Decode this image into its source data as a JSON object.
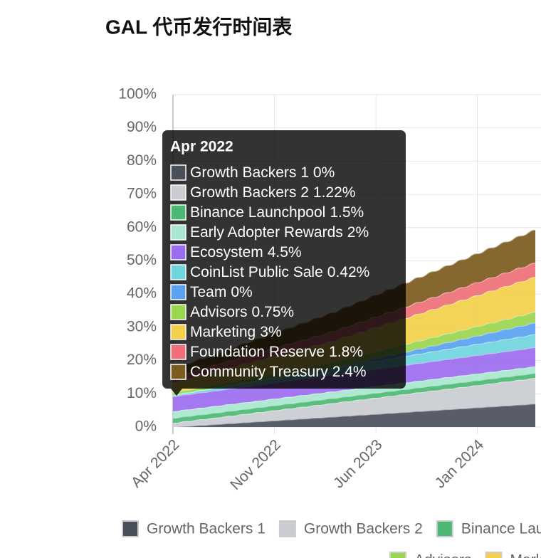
{
  "chart_data": {
    "type": "stacked_area",
    "title": "GAL 代币发行时间表",
    "categories": [
      "Apr 2022",
      null,
      null,
      null,
      null,
      null,
      null,
      "Nov 2022",
      null,
      null,
      null,
      null,
      null,
      null,
      "Jun 2023",
      null,
      null,
      null,
      null,
      null,
      null,
      "Jan 2024",
      null,
      null,
      null,
      null
    ],
    "ylim": [
      0,
      100
    ],
    "yticks": [
      {
        "value": 0,
        "label": "0%"
      },
      {
        "value": 10,
        "label": "10%"
      },
      {
        "value": 20,
        "label": "20%"
      },
      {
        "value": 30,
        "label": "30%"
      },
      {
        "value": 40,
        "label": "40%"
      },
      {
        "value": 50,
        "label": "50%"
      },
      {
        "value": 60,
        "label": "60%"
      },
      {
        "value": 70,
        "label": "70%"
      },
      {
        "value": 80,
        "label": "80%"
      },
      {
        "value": 90,
        "label": "90%"
      },
      {
        "value": 100,
        "label": "100%"
      }
    ],
    "grid": true,
    "legend": "bottom",
    "series": [
      {
        "name": "Growth Backers 1",
        "color": "#4a4f5c",
        "values": [
          0,
          0.28,
          0.56,
          0.84,
          1.12,
          1.4,
          1.68,
          1.96,
          2.24,
          2.52,
          2.8,
          3.08,
          3.36,
          3.64,
          3.92,
          4.2,
          4.48,
          4.76,
          5.04,
          5.32,
          5.6,
          5.88,
          6.16,
          6.44,
          6.72,
          7
        ],
        "value_labels": [
          "0%",
          null,
          null,
          null,
          null,
          null,
          null,
          null,
          null,
          null,
          null,
          null,
          null,
          null,
          null,
          null,
          null,
          null,
          null,
          null,
          null,
          null,
          null,
          null,
          null,
          null
        ]
      },
      {
        "name": "Growth Backers 2",
        "color": "#c9ccd1",
        "values": [
          1.22,
          1.48,
          1.74,
          2,
          2.26,
          2.52,
          2.78,
          3.04,
          3.3,
          3.56,
          3.82,
          4.08,
          4.34,
          4.6,
          4.86,
          5.12,
          5.38,
          5.64,
          5.9,
          6.16,
          6.42,
          6.68,
          6.94,
          7.2,
          7.46,
          7.72
        ],
        "value_labels": [
          "1.22%",
          null,
          null,
          null,
          null,
          null,
          null,
          null,
          null,
          null,
          null,
          null,
          null,
          null,
          null,
          null,
          null,
          null,
          null,
          null,
          null,
          null,
          null,
          null,
          null,
          null
        ]
      },
      {
        "name": "Binance Launchpool",
        "color": "#4cb874",
        "values": [
          1.5,
          1.5,
          1.5,
          1.5,
          1.5,
          1.5,
          1.5,
          1.5,
          1.5,
          1.5,
          1.5,
          1.5,
          1.5,
          1.5,
          1.5,
          1.5,
          1.5,
          1.5,
          1.5,
          1.5,
          1.5,
          1.5,
          1.5,
          1.5,
          1.5,
          1.5
        ],
        "value_labels": [
          "1.5%",
          null,
          null,
          null,
          null,
          null,
          null,
          null,
          null,
          null,
          null,
          null,
          null,
          null,
          null,
          null,
          null,
          null,
          null,
          null,
          null,
          null,
          null,
          null,
          null,
          null
        ]
      },
      {
        "name": "Early Adopter Rewards",
        "color": "#a8e6cf",
        "values": [
          2,
          2,
          2,
          2,
          2,
          2,
          2,
          2,
          2,
          2,
          2,
          2,
          2,
          2,
          2,
          2,
          2,
          2,
          2,
          2,
          2,
          2,
          2,
          2,
          2,
          2
        ],
        "value_labels": [
          "2%",
          null,
          null,
          null,
          null,
          null,
          null,
          null,
          null,
          null,
          null,
          null,
          null,
          null,
          null,
          null,
          null,
          null,
          null,
          null,
          null,
          null,
          null,
          null,
          null,
          null
        ]
      },
      {
        "name": "Ecosystem",
        "color": "#9b6cf0",
        "values": [
          4.5,
          4.55,
          4.6,
          4.65,
          4.7,
          4.75,
          4.8,
          4.85,
          4.9,
          4.95,
          5,
          5.05,
          5.1,
          5.15,
          5.2,
          5.25,
          5.3,
          5.35,
          5.4,
          5.45,
          5.5,
          5.55,
          5.6,
          5.65,
          5.7,
          5.75
        ],
        "value_labels": [
          "4.5%",
          null,
          null,
          null,
          null,
          null,
          null,
          null,
          null,
          null,
          null,
          null,
          null,
          null,
          null,
          null,
          null,
          null,
          null,
          null,
          null,
          null,
          null,
          null,
          null,
          null
        ]
      },
      {
        "name": "CoinList Public Sale",
        "color": "#6fd6dd",
        "values": [
          0.42,
          0.56,
          0.7,
          0.84,
          0.98,
          1.12,
          1.26,
          1.4,
          1.54,
          1.68,
          1.82,
          1.96,
          2.1,
          2.24,
          2.38,
          2.52,
          2.66,
          2.8,
          2.94,
          3.08,
          3.22,
          3.36,
          3.5,
          3.64,
          3.78,
          3.92
        ],
        "value_labels": [
          "0.42%",
          null,
          null,
          null,
          null,
          null,
          null,
          null,
          null,
          null,
          null,
          null,
          null,
          null,
          null,
          null,
          null,
          null,
          null,
          null,
          null,
          null,
          null,
          null,
          null,
          null
        ]
      },
      {
        "name": "Team",
        "color": "#5aa2f0",
        "values": [
          0,
          0,
          0,
          0,
          0,
          0,
          0,
          0,
          0,
          0,
          0,
          0,
          0.25,
          0.5,
          0.75,
          1,
          1.25,
          1.5,
          1.75,
          2,
          2.25,
          2.5,
          2.75,
          3,
          3.25,
          3.5
        ],
        "value_labels": [
          "0%",
          null,
          null,
          null,
          null,
          null,
          null,
          null,
          null,
          null,
          null,
          null,
          null,
          null,
          null,
          null,
          null,
          null,
          null,
          null,
          null,
          null,
          null,
          null,
          null,
          null
        ]
      },
      {
        "name": "Advisors",
        "color": "#9ad64f",
        "values": [
          0.75,
          0.85,
          0.95,
          1.05,
          1.15,
          1.25,
          1.35,
          1.45,
          1.55,
          1.65,
          1.75,
          1.85,
          1.95,
          2.05,
          2.15,
          2.25,
          2.35,
          2.45,
          2.55,
          2.65,
          2.75,
          2.85,
          2.95,
          3.05,
          3.15,
          3.25
        ],
        "value_labels": [
          "0.75%",
          null,
          null,
          null,
          null,
          null,
          null,
          null,
          null,
          null,
          null,
          null,
          null,
          null,
          null,
          null,
          null,
          null,
          null,
          null,
          null,
          null,
          null,
          null,
          null,
          null
        ]
      },
      {
        "name": "Marketing",
        "color": "#f2d04b",
        "values": [
          3,
          3.3,
          3.6,
          3.9,
          4.2,
          4.5,
          4.8,
          5.1,
          5.4,
          5.7,
          6,
          6.3,
          6.6,
          6.9,
          7.2,
          7.5,
          7.8,
          8.1,
          8.4,
          8.7,
          9,
          9.3,
          9.6,
          9.9,
          10.2,
          10.5
        ],
        "value_labels": [
          "3%",
          null,
          null,
          null,
          null,
          null,
          null,
          null,
          null,
          null,
          null,
          null,
          null,
          null,
          null,
          null,
          null,
          null,
          null,
          null,
          null,
          null,
          null,
          null,
          null,
          null
        ]
      },
      {
        "name": "Foundation Reserve",
        "color": "#ee6f77",
        "values": [
          1.8,
          1.9,
          2,
          2.1,
          2.2,
          2.3,
          2.4,
          2.5,
          2.6,
          2.7,
          2.8,
          2.9,
          3,
          3.1,
          3.2,
          3.3,
          3.4,
          3.5,
          3.6,
          3.7,
          3.8,
          3.9,
          4,
          4.1,
          4.2,
          4.3
        ],
        "value_labels": [
          "1.8%",
          null,
          null,
          null,
          null,
          null,
          null,
          null,
          null,
          null,
          null,
          null,
          null,
          null,
          null,
          null,
          null,
          null,
          null,
          null,
          null,
          null,
          null,
          null,
          null,
          null
        ]
      },
      {
        "name": "Community Treasury",
        "color": "#7d5a1e",
        "values": [
          2.4,
          2.7,
          3,
          3.3,
          3.6,
          3.9,
          4.2,
          4.5,
          4.8,
          5.1,
          5.4,
          5.7,
          6,
          6.3,
          6.6,
          6.9,
          7.2,
          7.5,
          7.8,
          8.1,
          8.4,
          8.7,
          9,
          9.3,
          9.6,
          9.9
        ],
        "value_labels": [
          "2.4%",
          null,
          null,
          null,
          null,
          null,
          null,
          null,
          null,
          null,
          null,
          null,
          null,
          null,
          null,
          null,
          null,
          null,
          null,
          null,
          null,
          null,
          null,
          null,
          null,
          null
        ]
      }
    ]
  }
}
